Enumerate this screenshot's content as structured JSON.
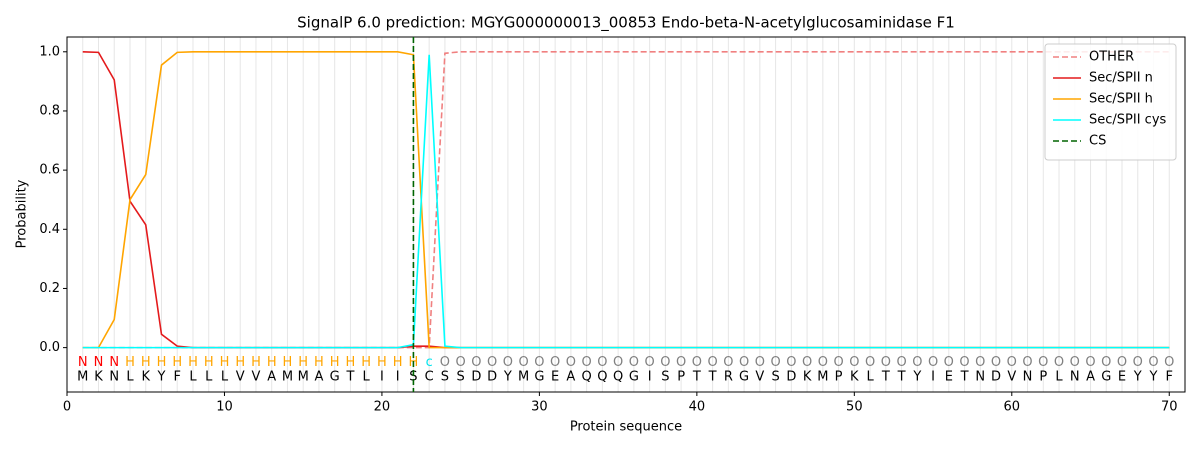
{
  "chart_data": {
    "type": "line",
    "title": "SignalP 6.0 prediction: MGYG000000013_00853 Endo-beta-N-acetylglucosaminidase F1",
    "x_label": "Protein sequence",
    "y_label": "Probability",
    "x": [
      1,
      2,
      3,
      4,
      5,
      6,
      7,
      8,
      9,
      10,
      11,
      12,
      13,
      14,
      15,
      16,
      17,
      18,
      19,
      20,
      21,
      22,
      23,
      24,
      25,
      26,
      27,
      28,
      29,
      30,
      31,
      32,
      33,
      34,
      35,
      36,
      37,
      38,
      39,
      40,
      41,
      42,
      43,
      44,
      45,
      46,
      47,
      48,
      49,
      50,
      51,
      52,
      53,
      54,
      55,
      56,
      57,
      58,
      59,
      60,
      61,
      62,
      63,
      64,
      65,
      66,
      67,
      68,
      69,
      70
    ],
    "series": [
      {
        "name": "OTHER",
        "color": "#f08080",
        "dashed": true,
        "values": [
          0,
          0,
          0,
          0,
          0,
          0,
          0,
          0,
          0,
          0,
          0,
          0,
          0,
          0,
          0,
          0,
          0,
          0,
          0,
          0,
          0,
          0,
          0,
          0.995,
          1,
          1,
          1,
          1,
          1,
          1,
          1,
          1,
          1,
          1,
          1,
          1,
          1,
          1,
          1,
          1,
          1,
          1,
          1,
          1,
          1,
          1,
          1,
          1,
          1,
          1,
          1,
          1,
          1,
          1,
          1,
          1,
          1,
          1,
          1,
          1,
          1,
          1,
          1,
          1,
          1,
          1,
          1,
          1,
          1,
          1
        ]
      },
      {
        "name": "Sec/SPII n",
        "color": "#e41a1c",
        "dashed": false,
        "values": [
          1,
          0.998,
          0.905,
          0.495,
          0.415,
          0.045,
          0.005,
          0,
          0,
          0,
          0,
          0,
          0,
          0,
          0,
          0,
          0,
          0,
          0,
          0,
          0,
          0.005,
          0.005,
          0,
          0,
          0,
          0,
          0,
          0,
          0,
          0,
          0,
          0,
          0,
          0,
          0,
          0,
          0,
          0,
          0,
          0,
          0,
          0,
          0,
          0,
          0,
          0,
          0,
          0,
          0,
          0,
          0,
          0,
          0,
          0,
          0,
          0,
          0,
          0,
          0,
          0,
          0,
          0,
          0,
          0,
          0,
          0,
          0,
          0,
          0
        ]
      },
      {
        "name": "Sec/SPII h",
        "color": "#ffa500",
        "dashed": false,
        "values": [
          0,
          0,
          0.095,
          0.5,
          0.585,
          0.955,
          0.998,
          1,
          1,
          1,
          1,
          1,
          1,
          1,
          1,
          1,
          1,
          1,
          1,
          1,
          1,
          0.99,
          0,
          0,
          0,
          0,
          0,
          0,
          0,
          0,
          0,
          0,
          0,
          0,
          0,
          0,
          0,
          0,
          0,
          0,
          0,
          0,
          0,
          0,
          0,
          0,
          0,
          0,
          0,
          0,
          0,
          0,
          0,
          0,
          0,
          0,
          0,
          0,
          0,
          0,
          0,
          0,
          0,
          0,
          0,
          0,
          0,
          0,
          0,
          0
        ]
      },
      {
        "name": "Sec/SPII cys",
        "color": "#00ffff",
        "dashed": false,
        "values": [
          0,
          0,
          0,
          0,
          0,
          0,
          0,
          0,
          0,
          0,
          0,
          0,
          0,
          0,
          0,
          0,
          0,
          0,
          0,
          0,
          0,
          0.01,
          0.99,
          0.005,
          0,
          0,
          0,
          0,
          0,
          0,
          0,
          0,
          0,
          0,
          0,
          0,
          0,
          0,
          0,
          0,
          0,
          0,
          0,
          0,
          0,
          0,
          0,
          0,
          0,
          0,
          0,
          0,
          0,
          0,
          0,
          0,
          0,
          0,
          0,
          0,
          0,
          0,
          0,
          0,
          0,
          0,
          0,
          0,
          0,
          0
        ]
      }
    ],
    "cs": {
      "name": "CS",
      "x": 22,
      "color": "#006400"
    },
    "sequence": [
      "M",
      "K",
      "N",
      "L",
      "K",
      "Y",
      "F",
      "L",
      "L",
      "L",
      "V",
      "V",
      "A",
      "M",
      "M",
      "A",
      "G",
      "T",
      "L",
      "I",
      "I",
      "S",
      "C",
      "S",
      "S",
      "D",
      "D",
      "Y",
      "M",
      "G",
      "E",
      "A",
      "Q",
      "Q",
      "Q",
      "G",
      "I",
      "S",
      "P",
      "T",
      "T",
      "R",
      "G",
      "V",
      "S",
      "D",
      "K",
      "M",
      "P",
      "K",
      "L",
      "T",
      "T",
      "Y",
      "I",
      "E",
      "T",
      "N",
      "D",
      "V",
      "N",
      "P",
      "L",
      "N",
      "A",
      "G",
      "E",
      "Y",
      "Y",
      "F"
    ],
    "regions": [
      "N",
      "N",
      "N",
      "H",
      "H",
      "H",
      "H",
      "H",
      "H",
      "H",
      "H",
      "H",
      "H",
      "H",
      "H",
      "H",
      "H",
      "H",
      "H",
      "H",
      "H",
      "H",
      "c",
      "O",
      "O",
      "O",
      "O",
      "O",
      "O",
      "O",
      "O",
      "O",
      "O",
      "O",
      "O",
      "O",
      "O",
      "O",
      "O",
      "O",
      "O",
      "O",
      "O",
      "O",
      "O",
      "O",
      "O",
      "O",
      "O",
      "O",
      "O",
      "O",
      "O",
      "O",
      "O",
      "O",
      "O",
      "O",
      "O",
      "O",
      "O",
      "O",
      "O",
      "O",
      "O",
      "O",
      "O",
      "O",
      "O",
      "O"
    ],
    "region_colors": {
      "N": "#ff0000",
      "H": "#ffa500",
      "c": "#00e5ee",
      "O": "#808080"
    },
    "xlim": [
      0,
      71
    ],
    "ylim": [
      -0.15,
      1.05
    ],
    "xticks": [
      0,
      10,
      20,
      30,
      40,
      50,
      60,
      70
    ],
    "yticks": [
      {
        "value": 0,
        "label": "0.0"
      },
      {
        "value": 0.2,
        "label": "0.2"
      },
      {
        "value": 0.4,
        "label": "0.4"
      },
      {
        "value": 0.6,
        "label": "0.6"
      },
      {
        "value": 0.8,
        "label": "0.8"
      },
      {
        "value": 1,
        "label": "1.0"
      }
    ],
    "legend": "upper right"
  }
}
